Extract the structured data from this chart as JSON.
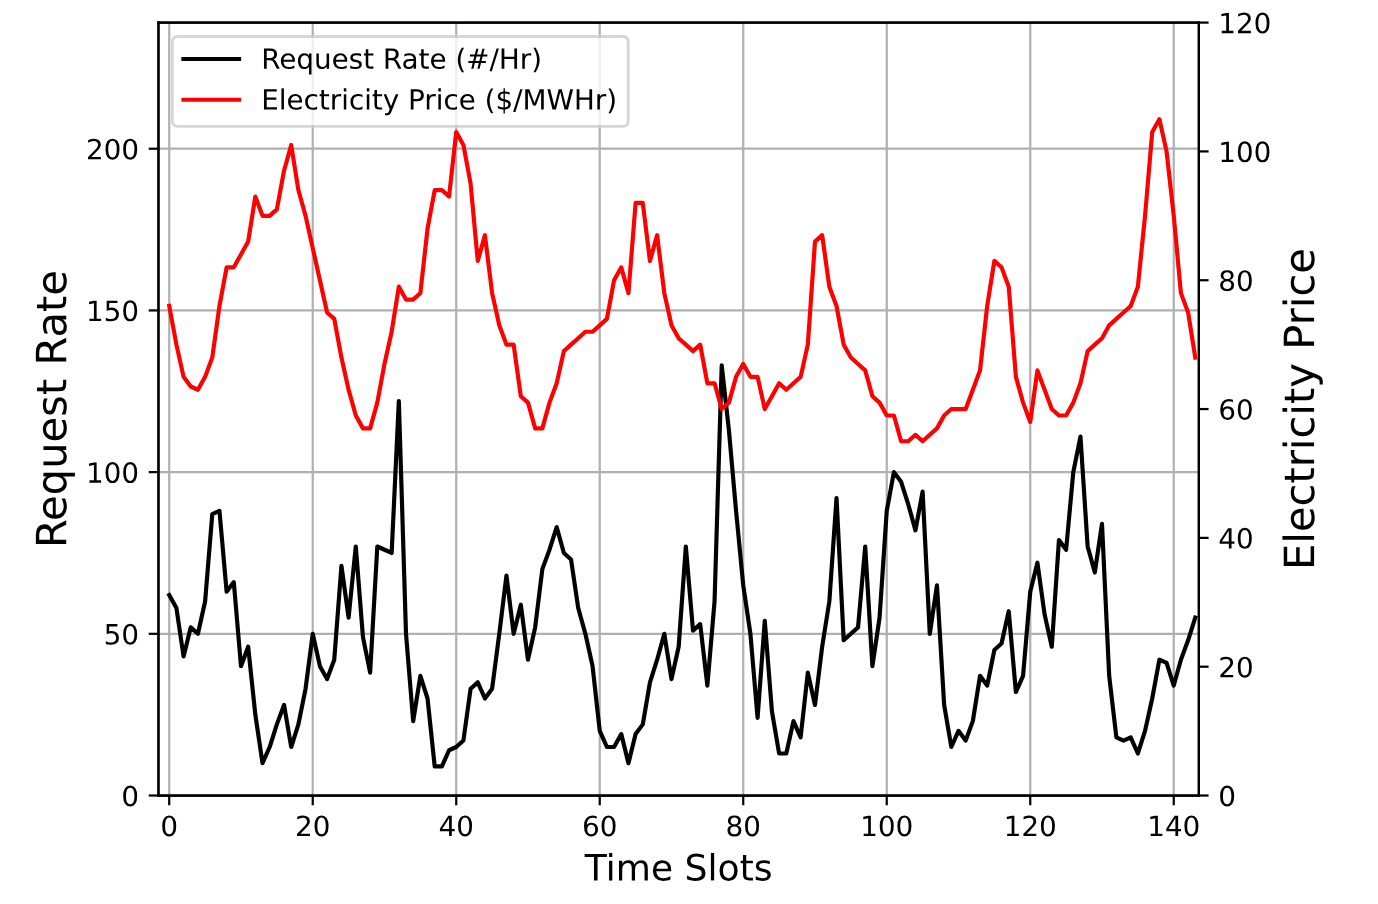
{
  "chart_data": {
    "type": "line",
    "xlabel": "Time Slots",
    "ylabel": "Request Rate",
    "y2label": "Electricity Price",
    "x": [
      0,
      1,
      2,
      3,
      4,
      5,
      6,
      7,
      8,
      9,
      10,
      11,
      12,
      13,
      14,
      15,
      16,
      17,
      18,
      19,
      20,
      21,
      22,
      23,
      24,
      25,
      26,
      27,
      28,
      29,
      30,
      31,
      32,
      33,
      34,
      35,
      36,
      37,
      38,
      39,
      40,
      41,
      42,
      43,
      44,
      45,
      46,
      47,
      48,
      49,
      50,
      51,
      52,
      53,
      54,
      55,
      56,
      57,
      58,
      59,
      60,
      61,
      62,
      63,
      64,
      65,
      66,
      67,
      68,
      69,
      70,
      71,
      72,
      73,
      74,
      75,
      76,
      77,
      78,
      79,
      80,
      81,
      82,
      83,
      84,
      85,
      86,
      87,
      88,
      89,
      90,
      91,
      92,
      93,
      94,
      95,
      96,
      97,
      98,
      99,
      100,
      101,
      102,
      103,
      104,
      105,
      106,
      107,
      108,
      109,
      110,
      111,
      112,
      113,
      114,
      115,
      116,
      117,
      118,
      119,
      120,
      121,
      122,
      123,
      124,
      125,
      126,
      127,
      128,
      129,
      130,
      131,
      132,
      133,
      134,
      135,
      136,
      137,
      138,
      139,
      140,
      141,
      142,
      143
    ],
    "series": [
      {
        "name": "Request Rate (#/Hr)",
        "color": "#000000",
        "values": [
          62,
          58,
          43,
          52,
          50,
          60,
          87,
          88,
          63,
          66,
          40,
          46,
          25,
          10,
          15,
          22,
          28,
          15,
          22,
          33,
          50,
          40,
          36,
          42,
          71,
          55,
          77,
          49,
          38,
          77,
          76,
          75,
          122,
          50,
          23,
          37,
          30,
          9,
          9,
          14,
          15,
          17,
          33,
          35,
          30,
          33,
          50,
          68,
          50,
          59,
          42,
          52,
          70,
          76,
          83,
          75,
          73,
          58,
          50,
          40,
          20,
          15,
          15,
          19,
          10,
          19,
          22,
          35,
          42,
          50,
          36,
          46,
          77,
          51,
          53,
          34,
          60,
          133,
          113,
          88,
          65,
          50,
          24,
          54,
          26,
          13,
          13,
          23,
          18,
          38,
          28,
          46,
          60,
          92,
          48,
          50,
          52,
          77,
          40,
          55,
          88,
          100,
          97,
          90,
          82,
          94,
          50,
          65,
          28,
          15,
          20,
          17,
          23,
          37,
          34,
          45,
          47,
          57,
          32,
          37,
          63,
          72,
          56,
          46,
          79,
          76,
          100,
          111,
          77,
          69,
          84,
          37,
          18,
          17,
          18,
          13,
          20,
          30,
          42,
          41,
          34,
          42,
          48,
          55
        ]
      },
      {
        "name": "Electricity Price ($/MWHr)",
        "color": "#ff0000",
        "axis": "y2",
        "values": [
          76,
          70,
          65,
          63.5,
          63,
          65,
          68,
          76,
          82,
          82,
          84,
          86,
          93,
          90,
          90,
          91,
          97,
          101,
          94,
          90,
          85,
          80,
          75,
          74,
          68,
          63,
          59,
          57,
          57,
          61,
          67,
          72,
          79,
          77,
          77,
          78,
          88,
          94,
          94,
          93,
          103,
          101,
          95,
          83,
          87,
          78,
          73,
          70,
          70,
          62,
          61,
          57,
          57,
          61,
          64,
          69,
          70,
          71,
          72,
          72,
          73,
          74,
          80,
          82,
          78,
          92,
          92,
          83,
          87,
          78,
          73,
          71,
          70,
          69,
          70,
          64,
          64,
          60,
          61,
          65,
          67,
          65,
          65,
          60,
          62,
          64,
          63,
          64,
          65,
          70,
          86,
          87,
          79,
          76,
          70,
          68,
          67,
          66,
          62,
          61,
          59,
          59,
          55,
          55,
          56,
          55,
          56,
          57,
          59,
          60,
          60,
          60,
          63,
          66,
          76,
          83,
          82,
          79,
          65,
          61,
          58,
          66,
          63,
          60,
          59,
          59,
          61,
          64,
          69,
          70,
          71,
          73,
          74,
          75,
          76,
          79,
          90,
          103,
          105,
          100,
          90,
          78,
          75,
          68
        ]
      }
    ],
    "xlim": [
      -1.5,
      143.5
    ],
    "xticks": [
      0,
      20,
      40,
      60,
      80,
      100,
      120,
      140
    ],
    "ylim": [
      0,
      239
    ],
    "yticks": [
      0,
      50,
      100,
      150,
      200
    ],
    "y2lim": [
      0,
      120
    ],
    "y2ticks": [
      0,
      20,
      40,
      60,
      80,
      100,
      120
    ],
    "grid": true,
    "legend": "top left"
  }
}
